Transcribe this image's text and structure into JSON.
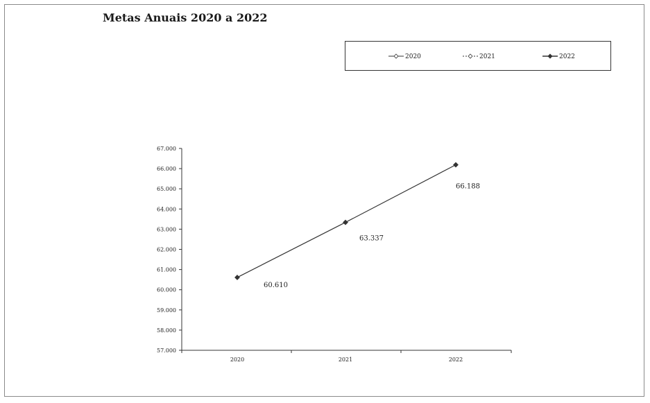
{
  "chart_data": {
    "type": "line",
    "title": "Metas Anuais 2020 a 2022",
    "xlabel": "",
    "ylabel": "",
    "categories": [
      "2020",
      "2021",
      "2022"
    ],
    "series": [
      {
        "values": [
          60610,
          63337,
          66188
        ]
      }
    ],
    "data_labels": [
      "60.610",
      "63.337",
      "66.188"
    ],
    "ylim": [
      57000,
      67000
    ],
    "yticks": [
      57000,
      58000,
      59000,
      60000,
      61000,
      62000,
      63000,
      64000,
      65000,
      66000,
      67000
    ],
    "ytick_labels": [
      "57.000",
      "58.000",
      "59.000",
      "60.000",
      "61.000",
      "62.000",
      "63.000",
      "64.000",
      "65.000",
      "66.000",
      "67.000"
    ],
    "legend": {
      "position": "top-right",
      "entries": [
        "2020",
        "2021",
        "2022"
      ]
    },
    "grid": false,
    "colors": {
      "line": "#333333",
      "marker": "#333333",
      "axis": "#333333"
    }
  }
}
